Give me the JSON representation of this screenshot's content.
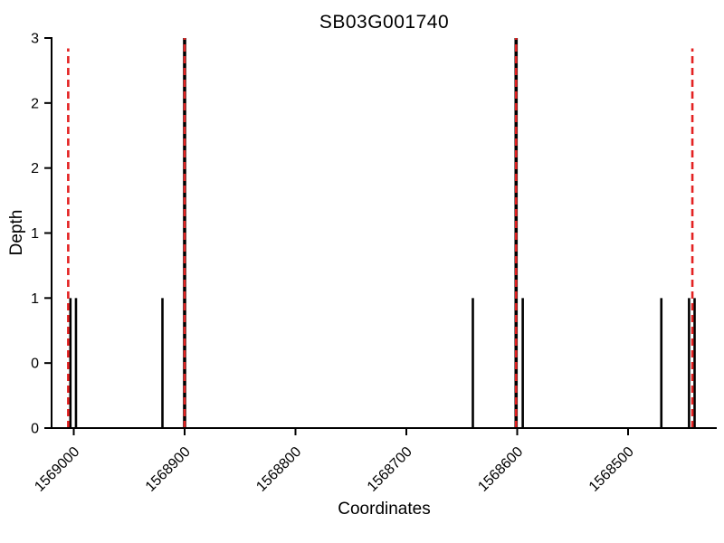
{
  "chart_data": {
    "type": "bar",
    "subtype": "stem-coverage-plot",
    "title": "SB03G001740",
    "xlabel": "Coordinates",
    "ylabel": "Depth",
    "x_reversed": true,
    "xlim": [
      1569020,
      1568420
    ],
    "ylim": [
      0,
      3
    ],
    "grid": false,
    "legend": "none",
    "xticks": {
      "values": [
        1569000,
        1568900,
        1568800,
        1568700,
        1568600,
        1568500
      ],
      "labels": [
        "1569000",
        "1568900",
        "1568800",
        "1568700",
        "1568600",
        "1568500"
      ],
      "rotation": 45
    },
    "yticks": {
      "values": [
        0,
        0.5,
        1,
        1.5,
        2,
        2.5,
        3
      ],
      "labels": [
        "0",
        "0",
        "1",
        "1",
        "2",
        "2",
        "3"
      ]
    },
    "bar_color": "#000000",
    "bars": [
      {
        "x": 1569003,
        "depth": 1
      },
      {
        "x": 1568998,
        "depth": 1
      },
      {
        "x": 1568920,
        "depth": 1
      },
      {
        "x": 1568900,
        "depth": 3
      },
      {
        "x": 1568640,
        "depth": 1
      },
      {
        "x": 1568601,
        "depth": 3
      },
      {
        "x": 1568595,
        "depth": 1
      },
      {
        "x": 1568470,
        "depth": 1
      },
      {
        "x": 1568445,
        "depth": 1
      },
      {
        "x": 1568440,
        "depth": 1
      }
    ],
    "guide_color": "#e32222",
    "guide_style": "dashed",
    "guide_lines": [
      {
        "x": 1569005,
        "ymax": 2.92
      },
      {
        "x": 1568900,
        "ymax": 3.0
      },
      {
        "x": 1568601,
        "ymax": 3.0
      },
      {
        "x": 1568442,
        "ymax": 2.92
      }
    ]
  }
}
